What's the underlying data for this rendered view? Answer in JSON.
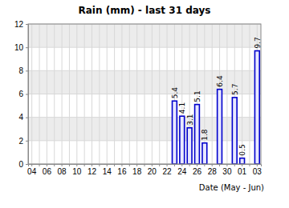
{
  "chart_data": {
    "type": "bar",
    "title": "Rain (mm) - last 31 days",
    "x_label": "Date (May - Jun)",
    "categories": [
      "04",
      null,
      "06",
      null,
      "08",
      null,
      "10",
      null,
      "12",
      null,
      "14",
      null,
      "16",
      null,
      "18",
      null,
      "20",
      null,
      "22",
      null,
      "24",
      null,
      "26",
      null,
      "28",
      null,
      "30",
      null,
      "01",
      null,
      "03"
    ],
    "values": [
      null,
      null,
      null,
      null,
      null,
      null,
      null,
      null,
      null,
      null,
      null,
      null,
      null,
      null,
      null,
      null,
      null,
      null,
      null,
      5.4,
      4.1,
      3.1,
      5.1,
      1.8,
      null,
      6.4,
      null,
      5.7,
      0.5,
      null,
      9.7
    ],
    "color": "#0000cc",
    "ylim": [
      0,
      12
    ],
    "yticks": [
      0,
      2,
      4,
      6,
      8,
      10,
      12
    ],
    "grid": true,
    "data_labels": true
  }
}
